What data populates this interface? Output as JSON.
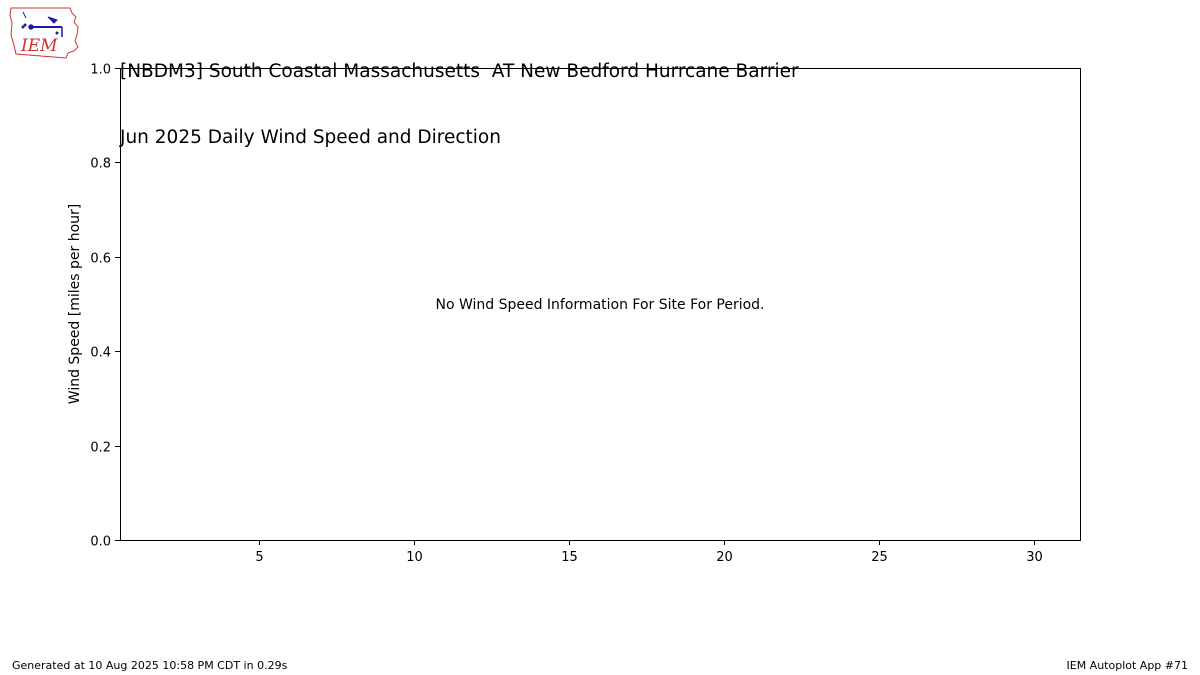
{
  "title": {
    "line1": "[NBDM3] South Coastal Massachusetts  AT New Bedford Hurrcane Barrier",
    "line2": "Jun 2025 Daily Wind Speed and Direction"
  },
  "logo": {
    "text": "IEM",
    "icon": "iem-iowa-weather-station-logo"
  },
  "footer": {
    "generated": "Generated at 10 Aug 2025 10:58 PM CDT in 0.29s",
    "app": "IEM Autoplot App #71"
  },
  "colors": {
    "logo_outline": "#d03030",
    "logo_station": "#1a1aa8",
    "logo_text": "#d03030"
  },
  "chart_data": {
    "type": "line",
    "title": "[NBDM3] South Coastal Massachusetts  AT New Bedford Hurrcane Barrier\nJun 2025 Daily Wind Speed and Direction",
    "xlabel": "",
    "ylabel": "Wind Speed [miles per hour]",
    "xlim": [
      0.5,
      31.5
    ],
    "ylim": [
      0.0,
      1.0
    ],
    "x_ticks": [
      5,
      10,
      15,
      20,
      25,
      30
    ],
    "y_ticks": [
      0.0,
      0.2,
      0.4,
      0.6,
      0.8,
      1.0
    ],
    "y_tick_labels": [
      "0.0",
      "0.2",
      "0.4",
      "0.6",
      "0.8",
      "1.0"
    ],
    "series": [],
    "grid": false,
    "annotation": "No Wind Speed Information For Site For Period."
  }
}
